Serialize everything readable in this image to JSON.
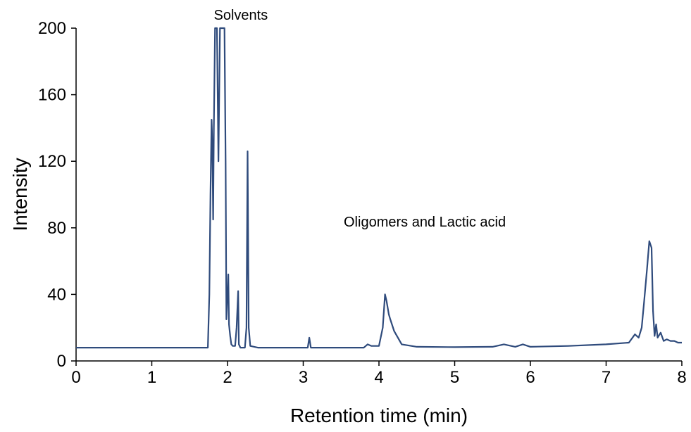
{
  "chart_data": {
    "type": "line",
    "title": "",
    "xlabel": "Retention time (min)",
    "ylabel": "Intensity",
    "xlim": [
      0,
      8
    ],
    "ylim": [
      0,
      200
    ],
    "xticks": [
      "0",
      "1",
      "2",
      "3",
      "4",
      "5",
      "6",
      "7",
      "8"
    ],
    "yticks": [
      "0",
      "40",
      "80",
      "120",
      "160",
      "200"
    ],
    "grid": false,
    "legend": "none",
    "line_color": "#2f4b7c",
    "annotations": [
      {
        "text": "Solvents",
        "x": 1.8,
        "y": 208
      },
      {
        "text": "Oligomers and Lactic acid",
        "x": 3.6,
        "y": 80
      }
    ],
    "series": [
      {
        "x": [
          0,
          1.0,
          1.74,
          1.76,
          1.775,
          1.79,
          1.8,
          1.81,
          1.82,
          1.835,
          1.86,
          1.88,
          1.9,
          1.96,
          1.975,
          1.985,
          2.0,
          2.01,
          2.02,
          2.035,
          2.05,
          2.07,
          2.1,
          2.12,
          2.14,
          2.15,
          2.17,
          2.2,
          2.23,
          2.25,
          2.265,
          2.28,
          2.3,
          2.4,
          3.0,
          3.06,
          3.08,
          3.1,
          3.5,
          3.8,
          3.85,
          3.9,
          4.0,
          4.05,
          4.08,
          4.1,
          4.13,
          4.15,
          4.2,
          4.3,
          4.5,
          5.0,
          5.5,
          5.65,
          5.8,
          5.9,
          6.0,
          6.5,
          7.0,
          7.3,
          7.38,
          7.43,
          7.47,
          7.5,
          7.54,
          7.57,
          7.6,
          7.62,
          7.64,
          7.66,
          7.68,
          7.72,
          7.76,
          7.8,
          7.85,
          7.9,
          7.95,
          8.0
        ],
        "y": [
          8,
          8,
          8,
          40,
          100,
          145,
          130,
          85,
          140,
          200,
          200,
          120,
          200,
          200,
          120,
          25,
          40,
          52,
          22,
          15,
          10,
          9,
          9,
          20,
          42,
          10,
          8,
          8,
          8,
          20,
          126,
          20,
          9,
          8,
          8,
          8,
          14,
          8,
          8,
          8,
          10,
          9,
          9,
          20,
          40,
          36,
          28,
          25,
          18,
          10,
          8.5,
          8.3,
          8.5,
          10,
          8.5,
          10,
          8.5,
          9,
          10,
          11,
          16,
          14,
          20,
          35,
          55,
          72,
          68,
          30,
          15,
          22,
          14,
          17,
          12,
          13,
          12,
          12,
          11,
          11
        ]
      }
    ]
  }
}
